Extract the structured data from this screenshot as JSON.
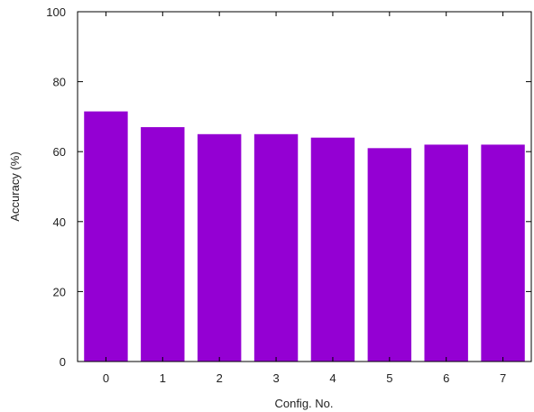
{
  "chart_data": {
    "type": "bar",
    "categories": [
      "0",
      "1",
      "2",
      "3",
      "4",
      "5",
      "6",
      "7"
    ],
    "values": [
      71.5,
      67,
      65,
      65,
      64,
      61,
      62,
      62
    ],
    "title": "",
    "xlabel": "Config. No.",
    "ylabel": "Accuracy (%)",
    "ylim": [
      0,
      100
    ],
    "yticks": [
      0,
      20,
      40,
      60,
      80,
      100
    ],
    "grid": false,
    "legend": "none",
    "bar_color": "#9400d3"
  }
}
